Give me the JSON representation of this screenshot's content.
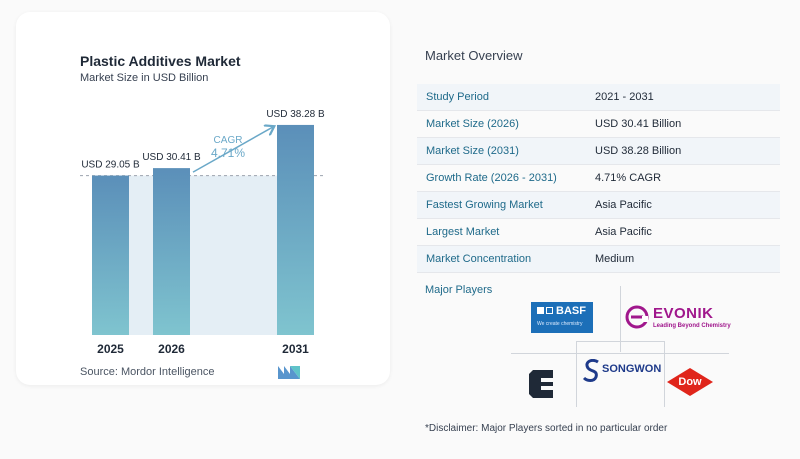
{
  "chart_data": {
    "type": "bar",
    "title": "Plastic Additives Market",
    "subtitle": "Market Size in USD Billion",
    "categories": [
      "2025",
      "2026",
      "2031"
    ],
    "values": [
      29.05,
      30.41,
      38.28
    ],
    "data_labels": [
      "USD 29.05 B",
      "USD 30.41 B",
      "USD 38.28 B"
    ],
    "cagr_label": "CAGR",
    "cagr_value": "4.71%",
    "ylim": [
      0,
      41
    ],
    "grid": false,
    "colors": {
      "bar_top": "#5b8fb9",
      "bar_bottom": "#7fc4cf",
      "band": "#e4eef5",
      "arrow": "#6aa8c8",
      "cagr_text": "#6aa8c8"
    }
  },
  "source": "Source:  Mordor Intelligence",
  "overview": {
    "title": "Market Overview",
    "rows": [
      {
        "label": "Study Period",
        "value": "2021 - 2031"
      },
      {
        "label": "Market Size (2026)",
        "value": "USD 30.41 Billion"
      },
      {
        "label": "Market Size (2031)",
        "value": "USD 38.28 Billion"
      },
      {
        "label": "Growth Rate (2026 - 2031)",
        "value": "4.71% CAGR"
      },
      {
        "label": "Fastest Growing Market",
        "value": "Asia Pacific"
      },
      {
        "label": "Largest Market",
        "value": "Asia Pacific"
      },
      {
        "label": "Market Concentration",
        "value": "Medium"
      }
    ]
  },
  "players": {
    "title": "Major Players",
    "basf": {
      "name": "BASF",
      "tagline": "We create chemistry"
    },
    "evonik": {
      "name": "EVONIK",
      "tagline": "Leading Beyond Chemistry"
    },
    "songwon": {
      "name": "SONGWON"
    },
    "dow": {
      "name": "Dow"
    },
    "clariant": {
      "icon": "clariant-logo-icon"
    }
  },
  "disclaimer": "*Disclaimer: Major Players sorted in no particular order"
}
